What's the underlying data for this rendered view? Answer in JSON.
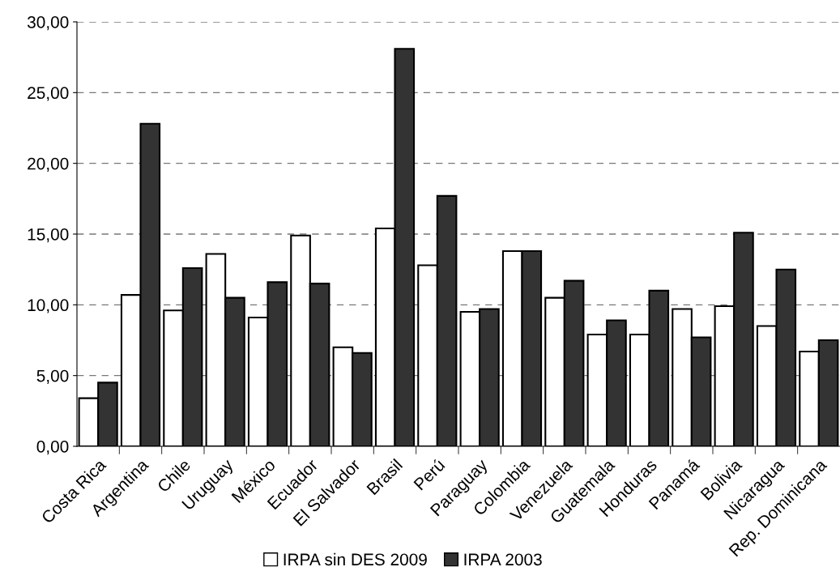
{
  "chart_data": {
    "type": "bar",
    "categories": [
      "Costa Rica",
      "Argentina",
      "Chile",
      "Uruguay",
      "México",
      "Ecuador",
      "El Salvador",
      "Brasil",
      "Perú",
      "Paraguay",
      "Colombia",
      "Venezuela",
      "Guatemala",
      "Honduras",
      "Panamá",
      "Bolivia",
      "Nicaragua",
      "Rep. Dominicana"
    ],
    "series": [
      {
        "name": "IRPA sin DES 2009",
        "color": "#ffffff",
        "values": [
          3.4,
          10.7,
          9.6,
          13.6,
          9.1,
          14.9,
          7.0,
          15.4,
          12.8,
          9.5,
          13.8,
          10.5,
          7.9,
          7.9,
          9.7,
          9.9,
          8.5,
          6.7
        ]
      },
      {
        "name": "IRPA 2003",
        "color": "#333333",
        "values": [
          4.5,
          22.8,
          12.6,
          10.5,
          11.6,
          11.5,
          6.6,
          28.1,
          17.7,
          9.7,
          13.8,
          11.7,
          8.9,
          11.0,
          7.7,
          15.1,
          12.5,
          7.5
        ]
      }
    ],
    "ylim": [
      0,
      30
    ],
    "yticks": [
      {
        "value": 0,
        "label": "0,00"
      },
      {
        "value": 5,
        "label": "5,00"
      },
      {
        "value": 10,
        "label": "10,00"
      },
      {
        "value": 15,
        "label": "15,00"
      },
      {
        "value": 20,
        "label": "20,00"
      },
      {
        "value": 25,
        "label": "25,00"
      },
      {
        "value": 30,
        "label": "30,00"
      }
    ],
    "grid": "y",
    "legend": "bottom"
  }
}
